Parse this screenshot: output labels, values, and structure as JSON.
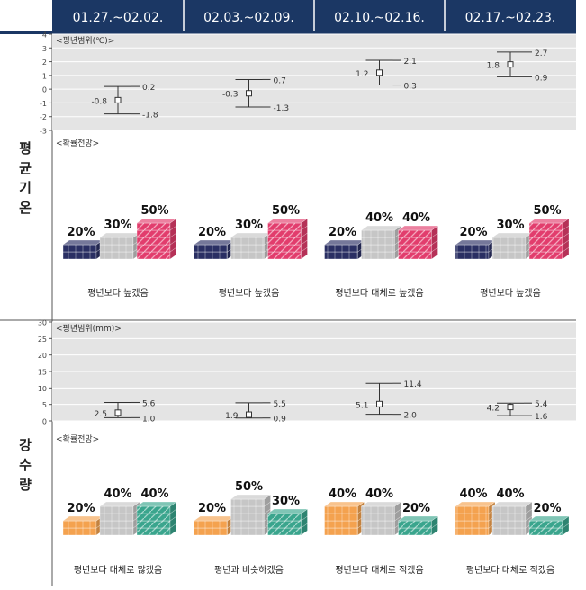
{
  "header": {
    "bg_color": "#1b3764",
    "periods": [
      "01.27.~02.02.",
      "02.03.~02.09.",
      "02.10.~02.16.",
      "02.17.~02.23."
    ]
  },
  "temperature": {
    "row_label": [
      "평",
      "균",
      "기",
      "온"
    ],
    "range_label": "<평년범위(℃)>",
    "prob_label": "<확률전망>"
  },
  "precipitation": {
    "row_label": [
      "강",
      "수",
      "량"
    ],
    "range_label": "<평년범위(mm)>",
    "prob_label": "<확률전망>"
  },
  "colors": {
    "below_temp": "#2a2f63",
    "normal": "#c6c6c6",
    "above_temp": "#e23d6d",
    "below_precip": "#f4a24f",
    "above_precip": "#3aa58d",
    "plot_bg": "#e4e4e4",
    "grid": "#ffffff"
  },
  "chart_data": [
    {
      "type": "errorbar",
      "name": "temperature-range",
      "range_label": "<평년범위(℃)>",
      "categories": [
        "01.27.~02.02.",
        "02.03.~02.09.",
        "02.10.~02.16.",
        "02.17.~02.23."
      ],
      "ylim": [
        -3,
        4
      ],
      "yticks": [
        -3,
        -2,
        -1,
        0,
        1,
        2,
        3,
        4
      ],
      "grid": true,
      "points": [
        {
          "mid": -0.8,
          "low": -1.8,
          "high": 0.2
        },
        {
          "mid": -0.3,
          "low": -1.3,
          "high": 0.7
        },
        {
          "mid": 1.2,
          "low": 0.3,
          "high": 2.1
        },
        {
          "mid": 1.8,
          "low": 0.9,
          "high": 2.7
        }
      ]
    },
    {
      "type": "stacked-blocks",
      "name": "temperature-probability",
      "categories": [
        "01.27.~02.02.",
        "02.03.~02.09.",
        "02.10.~02.16.",
        "02.17.~02.23."
      ],
      "series": [
        {
          "values": [
            20,
            20,
            20,
            20
          ],
          "color": "#2a2f63"
        },
        {
          "values": [
            30,
            30,
            40,
            30
          ],
          "color": "#c6c6c6"
        },
        {
          "values": [
            50,
            50,
            40,
            50
          ],
          "color": "#e23d6d"
        }
      ],
      "captions": [
        "평년보다 높겠음",
        "평년보다 높겠음",
        "평년보다 대체로 높겠음",
        "평년보다 높겠음"
      ]
    },
    {
      "type": "errorbar",
      "name": "precipitation-range",
      "range_label": "<평년범위(mm)>",
      "categories": [
        "01.27.~02.02.",
        "02.03.~02.09.",
        "02.10.~02.16.",
        "02.17.~02.23."
      ],
      "ylim": [
        0,
        30
      ],
      "yticks": [
        0,
        5,
        10,
        15,
        20,
        25,
        30
      ],
      "grid": true,
      "points": [
        {
          "mid": 2.5,
          "low": 1.0,
          "high": 5.6
        },
        {
          "mid": 1.9,
          "low": 0.9,
          "high": 5.5
        },
        {
          "mid": 5.1,
          "low": 2.0,
          "high": 11.4
        },
        {
          "mid": 4.2,
          "low": 1.6,
          "high": 5.4
        }
      ]
    },
    {
      "type": "stacked-blocks",
      "name": "precipitation-probability",
      "categories": [
        "01.27.~02.02.",
        "02.03.~02.09.",
        "02.10.~02.16.",
        "02.17.~02.23."
      ],
      "series": [
        {
          "values": [
            20,
            20,
            40,
            40
          ],
          "color": "#f4a24f"
        },
        {
          "values": [
            40,
            50,
            40,
            40
          ],
          "color": "#c6c6c6"
        },
        {
          "values": [
            40,
            30,
            20,
            20
          ],
          "color": "#3aa58d"
        }
      ],
      "captions": [
        "평년보다 대체로 많겠음",
        "평년과 비슷하겠음",
        "평년보다 대체로 적겠음",
        "평년보다 대체로 적겠음"
      ]
    }
  ]
}
